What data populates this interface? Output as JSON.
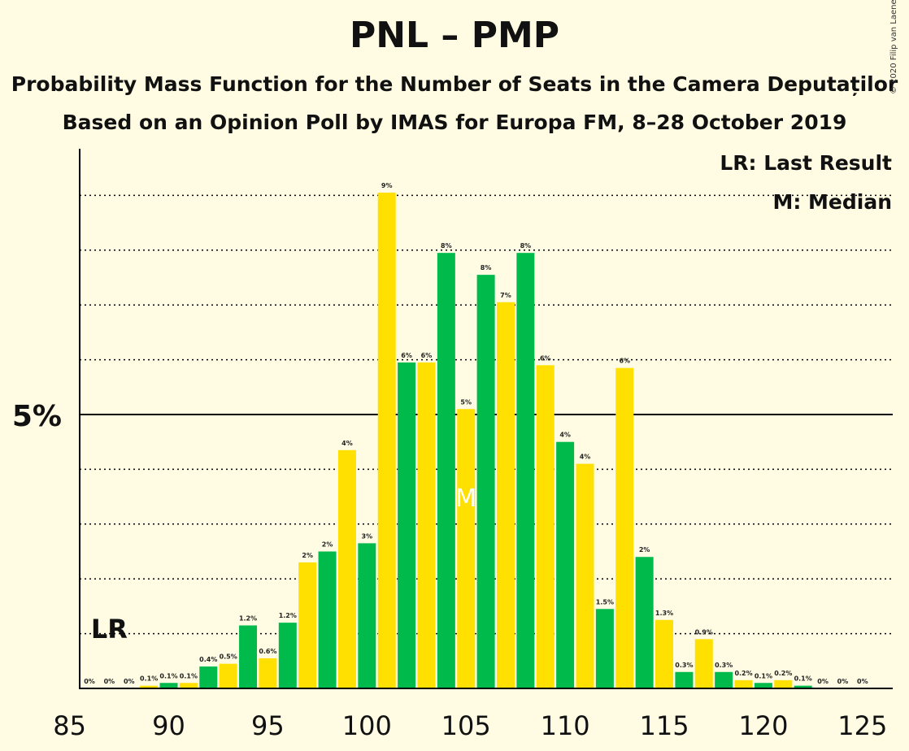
{
  "header": {
    "title": "PNL – PMP",
    "subtitle": "Probability Mass Function for the Number of Seats in the Camera Deputaților",
    "poll_line": "Based on an Opinion Poll by IMAS for Europa FM, 8–28 October 2019",
    "copyright": "© 2020 Filip van Laenen"
  },
  "legend": {
    "last_result": "LR: Last Result",
    "median": "M: Median"
  },
  "chart_data": {
    "type": "bar",
    "x": [
      86,
      87,
      88,
      89,
      90,
      91,
      92,
      93,
      94,
      95,
      96,
      97,
      98,
      99,
      100,
      101,
      102,
      103,
      104,
      105,
      106,
      107,
      108,
      109,
      110,
      111,
      112,
      113,
      114,
      115,
      116,
      117,
      118,
      119,
      120,
      121,
      122,
      123,
      124,
      125
    ],
    "values": [
      0,
      0,
      0,
      0.05,
      0.1,
      0.1,
      0.4,
      0.45,
      1.15,
      0.55,
      1.2,
      2.3,
      2.5,
      4.35,
      2.65,
      9.05,
      5.95,
      5.95,
      7.95,
      5.1,
      7.55,
      7.05,
      7.95,
      5.9,
      4.5,
      4.1,
      1.45,
      5.85,
      2.4,
      1.25,
      0.3,
      0.9,
      0.3,
      0.15,
      0.1,
      0.15,
      0.05,
      0,
      0,
      0
    ],
    "labels": [
      "0%",
      "0%",
      "0%",
      "0.1%",
      "0.1%",
      "0.1%",
      "0.4%",
      "0.5%",
      "1.2%",
      "0.6%",
      "1.2%",
      "2%",
      "2%",
      "4%",
      "3%",
      "9%",
      "6%",
      "6%",
      "8%",
      "5%",
      "8%",
      "7%",
      "8%",
      "6%",
      "4%",
      "4%",
      "1.5%",
      "6%",
      "2%",
      "1.3%",
      "0.3%",
      "0.9%",
      "0.3%",
      "0.2%",
      "0.1%",
      "0.2%",
      "0.1%",
      "0%",
      "0%",
      "0%"
    ],
    "colors": {
      "even_seat": "#00BB4C",
      "odd_seat": "#FFE000",
      "median_mark": "#FFFFFF"
    },
    "xticks": [
      85,
      90,
      95,
      100,
      105,
      110,
      115,
      120,
      125
    ],
    "ytick_label": "5%",
    "ylim": [
      0,
      9.8
    ],
    "gridlines": "dotted every 1%, solid at 5%",
    "last_result": {
      "seat": 87,
      "label": "LR"
    },
    "median": {
      "seat": 105,
      "label": "M"
    },
    "legend_position": "top-right"
  }
}
